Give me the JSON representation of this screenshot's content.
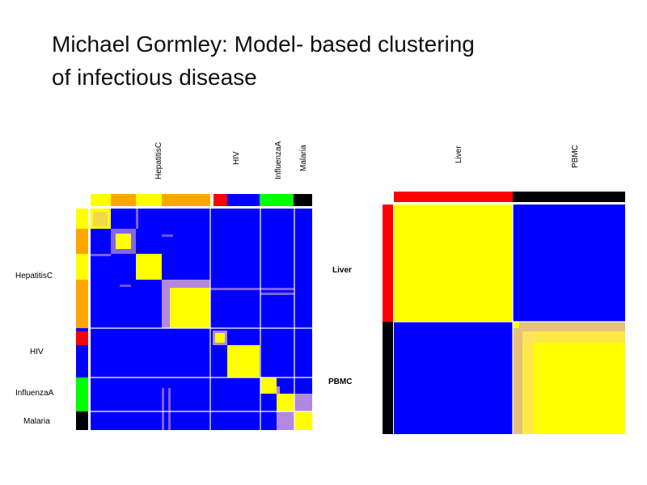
{
  "slide": {
    "title_line1": "Michael Gormley: Model- based clustering",
    "title_line2": "of infectious disease"
  },
  "colors": {
    "high": "#ffff00",
    "low": "#0000ff",
    "mid": "#b388e0",
    "mid_warm": "#e6c27a",
    "hepatitisC_a": "#ffff00",
    "hepatitisC_b": "#ffa500",
    "hiv": "#ff0000",
    "hiv_b": "#0000ff",
    "influenzaA": "#00ff00",
    "malaria": "#000000",
    "liver": "#ff0000",
    "pbmc": "#000000"
  },
  "chart_data": [
    {
      "type": "heatmap",
      "name": "disease-coclustering",
      "groups": [
        "HepatitisC",
        "HIV",
        "InfluenzaA",
        "Malaria"
      ],
      "group_sizes": [
        149,
        62,
        42,
        23
      ],
      "top_labels": [
        "HepatitisC",
        "HIV",
        "InfluenzaA",
        "Malaria"
      ],
      "left_labels": [
        "HepatitisC",
        "HIV",
        "InfluenzaA",
        "Malaria"
      ]
    },
    {
      "type": "heatmap",
      "name": "tissue-coclustering",
      "groups": [
        "Liver",
        "PBMC"
      ],
      "group_sizes": [
        147,
        139
      ],
      "top_labels": [
        "Liver",
        "PBMC"
      ],
      "left_labels": [
        "Liver",
        "PBMC"
      ]
    }
  ]
}
